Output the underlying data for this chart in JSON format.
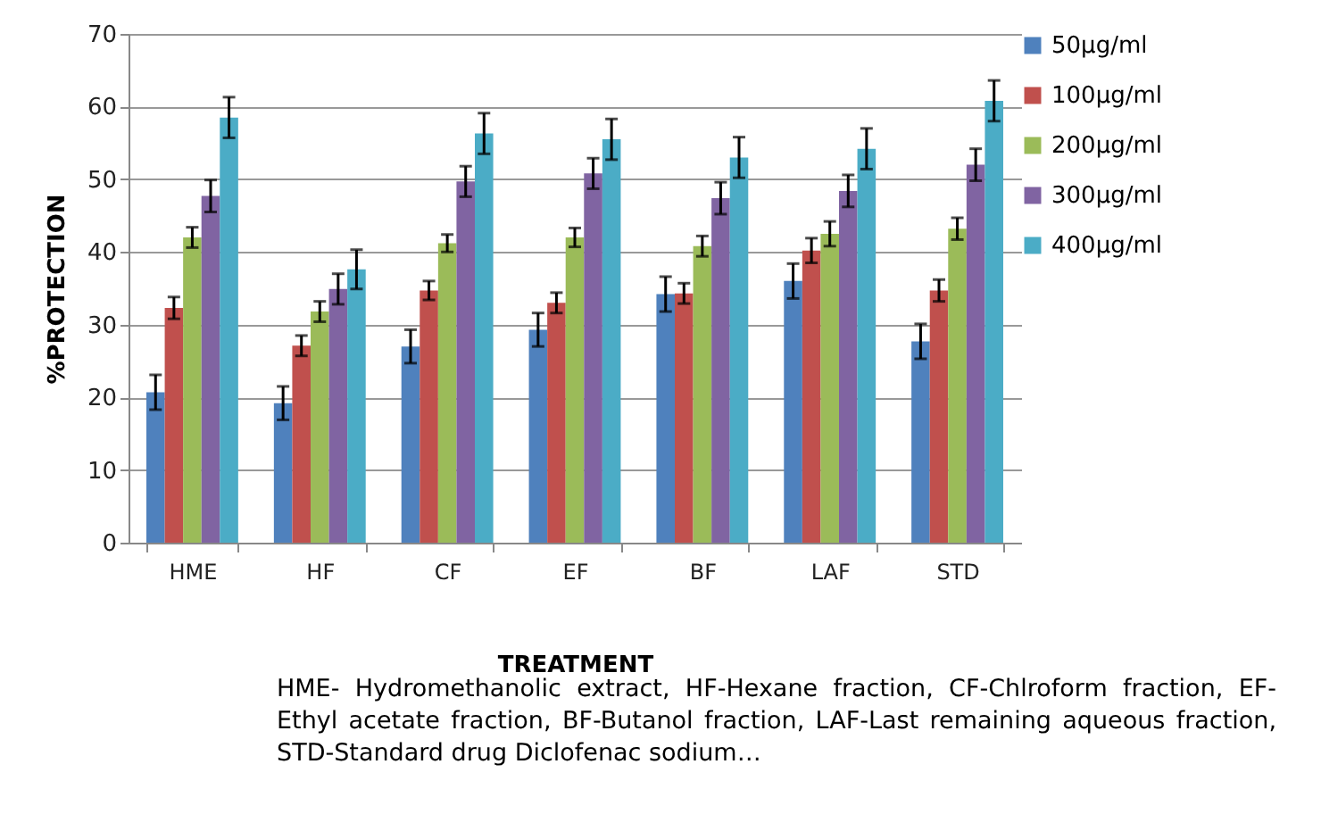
{
  "chart_data": {
    "type": "bar",
    "xlabel": "TREATMENT",
    "ylabel": "%PROTECTION",
    "categories": [
      "HME",
      "HF",
      "CF",
      "EF",
      "BF",
      "LAF",
      "STD"
    ],
    "series": [
      {
        "name": "50µg/ml",
        "color": "#4f81bd",
        "values": [
          20.7,
          19.2,
          27.0,
          29.3,
          34.2,
          36.0,
          27.7
        ],
        "errors": [
          2.4,
          2.3,
          2.3,
          2.3,
          2.4,
          2.4,
          2.4
        ]
      },
      {
        "name": "100µg/ml",
        "color": "#c0504d",
        "values": [
          32.3,
          27.1,
          34.7,
          33.0,
          34.3,
          40.2,
          34.7
        ],
        "errors": [
          1.5,
          1.4,
          1.3,
          1.4,
          1.4,
          1.7,
          1.5
        ]
      },
      {
        "name": "200µg/ml",
        "color": "#9bbb59",
        "values": [
          42.0,
          31.8,
          41.2,
          42.0,
          40.8,
          42.5,
          43.2
        ],
        "errors": [
          1.4,
          1.4,
          1.2,
          1.3,
          1.4,
          1.7,
          1.5
        ]
      },
      {
        "name": "300µg/ml",
        "color": "#8064a2",
        "values": [
          47.7,
          34.9,
          49.7,
          50.8,
          47.4,
          48.4,
          52.0
        ],
        "errors": [
          2.2,
          2.1,
          2.1,
          2.1,
          2.2,
          2.2,
          2.2
        ]
      },
      {
        "name": "400µg/ml",
        "color": "#4bacc6",
        "values": [
          58.5,
          37.6,
          56.3,
          55.5,
          53.0,
          54.2,
          60.8
        ],
        "errors": [
          2.8,
          2.7,
          2.8,
          2.8,
          2.8,
          2.8,
          2.8
        ]
      }
    ],
    "ylim": [
      0,
      70
    ],
    "yticks": [
      0,
      10,
      20,
      30,
      40,
      50,
      60,
      70
    ],
    "grid": "y",
    "legend": "right",
    "annotations": [
      "HME- Hydromethanolic extract, HF-Hexane fraction, CF-Chlroform fraction, EF-Ethyl acetate fraction, BF-Butanol fraction, LAF-Last remaining aqueous fraction, STD-Standard drug Diclofenac sodium…"
    ]
  }
}
